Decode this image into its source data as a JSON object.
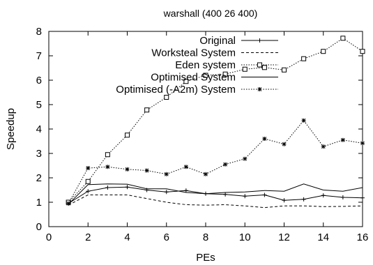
{
  "chart_data": {
    "type": "line",
    "title": "warshall (400 26 400)",
    "xlabel": "PEs",
    "ylabel": "Speedup",
    "xlim": [
      0,
      16
    ],
    "ylim": [
      0,
      8
    ],
    "xticks": [
      0,
      2,
      4,
      6,
      8,
      10,
      12,
      14,
      16
    ],
    "yticks": [
      0,
      1,
      2,
      3,
      4,
      5,
      6,
      7,
      8
    ],
    "x": [
      1,
      2,
      3,
      4,
      5,
      6,
      7,
      8,
      9,
      10,
      11,
      12,
      13,
      14,
      15,
      16
    ],
    "legend_position": "top-right",
    "grid": false,
    "series": [
      {
        "name": "Original",
        "values": [
          0.95,
          1.45,
          1.6,
          1.62,
          1.5,
          1.42,
          1.48,
          1.35,
          1.32,
          1.25,
          1.3,
          1.08,
          1.12,
          1.28,
          1.2,
          1.18
        ],
        "dash": "solid",
        "marker": "plus"
      },
      {
        "name": "Worksteal System",
        "values": [
          0.88,
          1.3,
          1.3,
          1.3,
          1.15,
          1.0,
          0.9,
          0.88,
          0.9,
          0.85,
          0.78,
          0.85,
          0.85,
          0.82,
          0.83,
          0.85
        ],
        "dash": "dashed",
        "marker": "none"
      },
      {
        "name": "Eden system",
        "values": [
          1.0,
          1.85,
          2.95,
          3.75,
          4.78,
          5.3,
          5.95,
          6.2,
          6.25,
          6.45,
          6.52,
          6.42,
          6.88,
          7.18,
          7.72,
          7.18
        ],
        "dash": "dotted",
        "marker": "square"
      },
      {
        "name": "Optimised System",
        "values": [
          0.92,
          1.72,
          1.75,
          1.74,
          1.55,
          1.55,
          1.4,
          1.35,
          1.4,
          1.42,
          1.48,
          1.45,
          1.75,
          1.5,
          1.45,
          1.6
        ],
        "dash": "solid",
        "marker": "none"
      },
      {
        "name": "Optimised (-A2m) System",
        "values": [
          0.95,
          2.4,
          2.45,
          2.35,
          2.3,
          2.15,
          2.45,
          2.15,
          2.55,
          2.78,
          3.6,
          3.38,
          4.35,
          3.28,
          3.55,
          3.42
        ],
        "dash": "dotted",
        "marker": "asterisk"
      }
    ]
  }
}
